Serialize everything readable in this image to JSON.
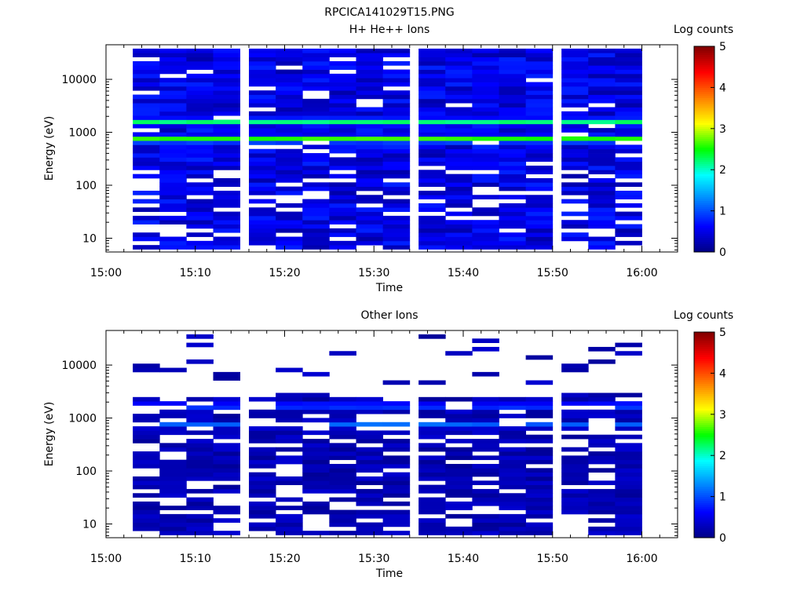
{
  "page_title": "RPCICA141029T15.PNG",
  "chart_data": [
    {
      "type": "heatmap",
      "title": "H+ He++ Ions",
      "xlabel": "Time",
      "ylabel": "Energy (eV)",
      "x_ticks": [
        "15:00",
        "15:10",
        "15:20",
        "15:30",
        "15:40",
        "15:50",
        "16:00"
      ],
      "x_range": [
        "15:00",
        "16:04"
      ],
      "y_scale": "log",
      "y_ticks": [
        "10",
        "100",
        "1000",
        "10000"
      ],
      "y_range": [
        5.5,
        45000
      ],
      "colorbar": {
        "label": "Log counts",
        "ticks": [
          "0",
          "1",
          "2",
          "3",
          "4",
          "5"
        ],
        "range": [
          0,
          5
        ]
      },
      "time_columns": [
        "15:03",
        "15:06",
        "15:09",
        "15:12",
        "15:16",
        "15:19",
        "15:22",
        "15:25",
        "15:28",
        "15:31",
        "15:35",
        "15:38",
        "15:41",
        "15:44",
        "15:47",
        "15:51",
        "15:54",
        "15:57"
      ],
      "energy_bands_eV": [
        1600,
        750
      ],
      "peak_log_counts": [
        2.3,
        2.7
      ],
      "background_log_counts": [
        0.2,
        0.8
      ]
    },
    {
      "type": "heatmap",
      "title": "Other Ions",
      "xlabel": "Time",
      "ylabel": "Energy (eV)",
      "x_ticks": [
        "15:00",
        "15:10",
        "15:20",
        "15:30",
        "15:40",
        "15:50",
        "16:00"
      ],
      "x_range": [
        "15:00",
        "16:04"
      ],
      "y_scale": "log",
      "y_ticks": [
        "10",
        "100",
        "1000",
        "10000"
      ],
      "y_range": [
        5.5,
        45000
      ],
      "colorbar": {
        "label": "Log counts",
        "ticks": [
          "0",
          "1",
          "2",
          "3",
          "4",
          "5"
        ],
        "range": [
          0,
          5
        ]
      },
      "time_columns": [
        "15:03",
        "15:06",
        "15:09",
        "15:12",
        "15:16",
        "15:19",
        "15:22",
        "15:25",
        "15:28",
        "15:31",
        "15:35",
        "15:38",
        "15:41",
        "15:44",
        "15:47",
        "15:51",
        "15:54",
        "15:57"
      ],
      "energy_bands_eV": [
        1700,
        750
      ],
      "peak_log_counts": [
        1.1,
        1.2
      ],
      "background_log_counts": [
        0.1,
        0.4
      ]
    }
  ]
}
